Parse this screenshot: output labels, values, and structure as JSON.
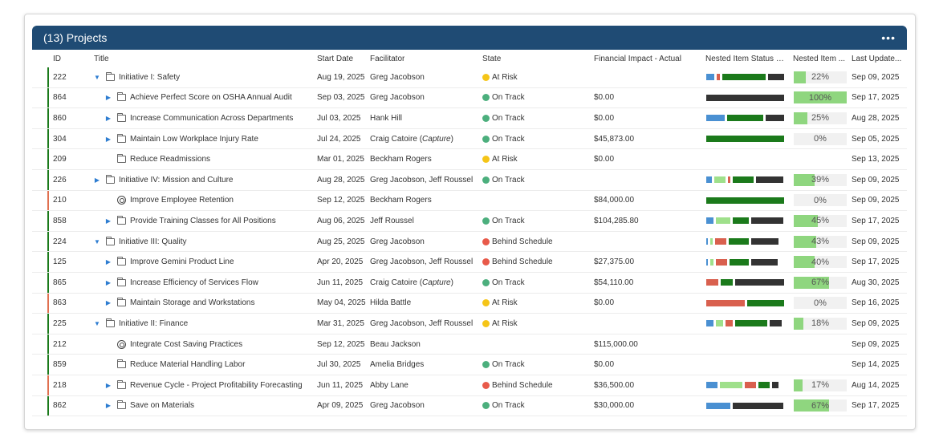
{
  "header": {
    "title": "(13) Projects",
    "more_label": "•••"
  },
  "columns": {
    "id": "ID",
    "title": "Title",
    "start": "Start Date",
    "facilitator": "Facilitator",
    "state": "State",
    "financial": "Financial Impact - Actual",
    "nested_status": "Nested Item Status B...",
    "nested_pct": "Nested Item ...",
    "updated": "Last Update..."
  },
  "colors": {
    "header_bg": "#1f4b74",
    "on_track": "#4caf7d",
    "at_risk": "#f5c518",
    "behind": "#e85a4a",
    "seg_blue": "#4a90d2",
    "seg_lightgreen": "#9fe08b",
    "seg_red": "#d9604e",
    "seg_darkgreen": "#1b7a1b",
    "seg_black": "#333333",
    "pct_fill": "#8fd67f"
  },
  "rows": [
    {
      "id": "222",
      "indent": 0,
      "caret": "down",
      "icon": "folder",
      "title": "Initiative I: Safety",
      "start": "Aug 19, 2025",
      "facilitator": "Greg Jacobson",
      "fac_suffix": "",
      "state": "At Risk",
      "state_color": "#f5c518",
      "financial": "",
      "bar_color": "#1b7a1b",
      "status": [
        [
          "#4a90d2",
          10
        ],
        [
          "#d9604e",
          4
        ],
        [
          "#1b7a1b",
          54
        ],
        [
          "#333333",
          20
        ]
      ],
      "pct": "22%",
      "pct_value": 22,
      "updated": "Sep 09, 2025"
    },
    {
      "id": "864",
      "indent": 1,
      "caret": "right",
      "icon": "folder",
      "title": "Achieve Perfect Score on OSHA Annual Audit",
      "start": "Sep 03, 2025",
      "facilitator": "Greg Jacobson",
      "fac_suffix": "",
      "state": "On Track",
      "state_color": "#4caf7d",
      "financial": "$0.00",
      "bar_color": "#1b7a1b",
      "status": [
        [
          "#333333",
          97
        ]
      ],
      "pct": "100%",
      "pct_value": 100,
      "updated": "Sep 17, 2025"
    },
    {
      "id": "860",
      "indent": 1,
      "caret": "right",
      "icon": "folder",
      "title": "Increase Communication Across Departments",
      "start": "Jul 03, 2025",
      "facilitator": "Hank Hill",
      "fac_suffix": "",
      "state": "On Track",
      "state_color": "#4caf7d",
      "financial": "$0.00",
      "bar_color": "#1b7a1b",
      "status": [
        [
          "#4a90d2",
          23
        ],
        [
          "#1b7a1b",
          45
        ],
        [
          "#333333",
          23
        ]
      ],
      "pct": "25%",
      "pct_value": 25,
      "updated": "Aug 28, 2025"
    },
    {
      "id": "304",
      "indent": 1,
      "caret": "right",
      "icon": "folder",
      "title": "Maintain Low Workplace Injury Rate",
      "start": "Jul 24, 2025",
      "facilitator": "Craig Catoire",
      "fac_suffix": "Capture",
      "state": "On Track",
      "state_color": "#4caf7d",
      "financial": "$45,873.00",
      "bar_color": "#1b7a1b",
      "status": [
        [
          "#1b7a1b",
          97
        ]
      ],
      "pct": "0%",
      "pct_value": 0,
      "updated": "Sep 05, 2025"
    },
    {
      "id": "209",
      "indent": 1,
      "caret": "none",
      "icon": "folder",
      "title": "Reduce Readmissions",
      "start": "Mar 01, 2025",
      "facilitator": "Beckham Rogers",
      "fac_suffix": "",
      "state": "At Risk",
      "state_color": "#f5c518",
      "financial": "$0.00",
      "bar_color": "#1b7a1b",
      "status": [],
      "pct": "",
      "pct_value": null,
      "updated": "Sep 13, 2025"
    },
    {
      "id": "226",
      "indent": 0,
      "caret": "right",
      "icon": "folder",
      "title": "Initiative IV: Mission and Culture",
      "start": "Aug 28, 2025",
      "facilitator": "Greg Jacobson, Jeff Roussel",
      "fac_suffix": "",
      "state": "On Track",
      "state_color": "#4caf7d",
      "financial": "",
      "bar_color": "#1b7a1b",
      "status": [
        [
          "#4a90d2",
          7
        ],
        [
          "#9fe08b",
          14
        ],
        [
          "#d9604e",
          3
        ],
        [
          "#1b7a1b",
          26
        ],
        [
          "#333333",
          34
        ]
      ],
      "pct": "39%",
      "pct_value": 39,
      "updated": "Sep 09, 2025"
    },
    {
      "id": "210",
      "indent": 1,
      "caret": "none",
      "icon": "target",
      "title": "Improve Employee Retention",
      "start": "Sep 12, 2025",
      "facilitator": "Beckham Rogers",
      "fac_suffix": "",
      "state": "",
      "state_color": "",
      "financial": "$84,000.00",
      "bar_color": "#e07050",
      "status": [
        [
          "#1b7a1b",
          97
        ]
      ],
      "pct": "0%",
      "pct_value": 0,
      "updated": "Sep 09, 2025"
    },
    {
      "id": "858",
      "indent": 1,
      "caret": "right",
      "icon": "folder",
      "title": "Provide Training Classes for All Positions",
      "start": "Aug 06, 2025",
      "facilitator": "Jeff Roussel",
      "fac_suffix": "",
      "state": "On Track",
      "state_color": "#4caf7d",
      "financial": "$104,285.80",
      "bar_color": "#1b7a1b",
      "status": [
        [
          "#4a90d2",
          9
        ],
        [
          "#9fe08b",
          18
        ],
        [
          "#1b7a1b",
          20
        ],
        [
          "#333333",
          40
        ]
      ],
      "pct": "45%",
      "pct_value": 45,
      "updated": "Sep 17, 2025"
    },
    {
      "id": "224",
      "indent": 0,
      "caret": "down",
      "icon": "folder",
      "title": "Initiative III: Quality",
      "start": "Aug 25, 2025",
      "facilitator": "Greg Jacobson",
      "fac_suffix": "",
      "state": "Behind Schedule",
      "state_color": "#e85a4a",
      "financial": "",
      "bar_color": "#1b7a1b",
      "status": [
        [
          "#4a90d2",
          2
        ],
        [
          "#9fe08b",
          3
        ],
        [
          "#d9604e",
          14
        ],
        [
          "#1b7a1b",
          25
        ],
        [
          "#333333",
          34
        ]
      ],
      "pct": "43%",
      "pct_value": 43,
      "updated": "Sep 09, 2025"
    },
    {
      "id": "125",
      "indent": 1,
      "caret": "right",
      "icon": "folder",
      "title": "Improve Gemini Product Line",
      "start": "Apr 20, 2025",
      "facilitator": "Greg Jacobson, Jeff Roussel",
      "fac_suffix": "",
      "state": "Behind Schedule",
      "state_color": "#e85a4a",
      "financial": "$27,375.00",
      "bar_color": "#1b7a1b",
      "status": [
        [
          "#4a90d2",
          2
        ],
        [
          "#9fe08b",
          4
        ],
        [
          "#d9604e",
          14
        ],
        [
          "#1b7a1b",
          24
        ],
        [
          "#333333",
          33
        ]
      ],
      "pct": "40%",
      "pct_value": 40,
      "updated": "Sep 17, 2025"
    },
    {
      "id": "865",
      "indent": 1,
      "caret": "right",
      "icon": "folder",
      "title": "Increase Efficiency of Services Flow",
      "start": "Jun 11, 2025",
      "facilitator": "Craig Catoire",
      "fac_suffix": "Capture",
      "state": "On Track",
      "state_color": "#4caf7d",
      "financial": "$54,110.00",
      "bar_color": "#1b7a1b",
      "status": [
        [
          "#d9604e",
          15
        ],
        [
          "#1b7a1b",
          15
        ],
        [
          "#333333",
          61
        ]
      ],
      "pct": "67%",
      "pct_value": 67,
      "updated": "Aug 30, 2025"
    },
    {
      "id": "863",
      "indent": 1,
      "caret": "right",
      "icon": "folder",
      "title": "Maintain Storage and Workstations",
      "start": "May 04, 2025",
      "facilitator": "Hilda Battle",
      "fac_suffix": "",
      "state": "At Risk",
      "state_color": "#f5c518",
      "financial": "$0.00",
      "bar_color": "#e07050",
      "status": [
        [
          "#d9604e",
          48
        ],
        [
          "#1b7a1b",
          46
        ]
      ],
      "pct": "0%",
      "pct_value": 0,
      "updated": "Sep 16, 2025"
    },
    {
      "id": "225",
      "indent": 0,
      "caret": "down",
      "icon": "folder",
      "title": "Initiative II: Finance",
      "start": "Mar 31, 2025",
      "facilitator": "Greg Jacobson, Jeff Roussel",
      "fac_suffix": "",
      "state": "At Risk",
      "state_color": "#f5c518",
      "financial": "",
      "bar_color": "#1b7a1b",
      "status": [
        [
          "#4a90d2",
          9
        ],
        [
          "#9fe08b",
          9
        ],
        [
          "#d9604e",
          9
        ],
        [
          "#1b7a1b",
          40
        ],
        [
          "#333333",
          15
        ]
      ],
      "pct": "18%",
      "pct_value": 18,
      "updated": "Sep 09, 2025"
    },
    {
      "id": "212",
      "indent": 1,
      "caret": "none",
      "icon": "target",
      "title": "Integrate Cost Saving Practices",
      "start": "Sep 12, 2025",
      "facilitator": "Beau Jackson",
      "fac_suffix": "",
      "state": "",
      "state_color": "",
      "financial": "$115,000.00",
      "bar_color": "#1b7a1b",
      "status": [],
      "pct": "",
      "pct_value": null,
      "updated": "Sep 09, 2025"
    },
    {
      "id": "859",
      "indent": 1,
      "caret": "none",
      "icon": "folder",
      "title": "Reduce Material Handling Labor",
      "start": "Jul 30, 2025",
      "facilitator": "Amelia Bridges",
      "fac_suffix": "",
      "state": "On Track",
      "state_color": "#4caf7d",
      "financial": "$0.00",
      "bar_color": "#1b7a1b",
      "status": [],
      "pct": "",
      "pct_value": null,
      "updated": "Sep 14, 2025"
    },
    {
      "id": "218",
      "indent": 1,
      "caret": "right",
      "icon": "folder",
      "title": "Revenue Cycle - Project Profitability Forecasting",
      "start": "Jun 11, 2025",
      "facilitator": "Abby Lane",
      "fac_suffix": "",
      "state": "Behind Schedule",
      "state_color": "#e85a4a",
      "financial": "$36,500.00",
      "bar_color": "#e07050",
      "status": [
        [
          "#4a90d2",
          14
        ],
        [
          "#9fe08b",
          28
        ],
        [
          "#d9604e",
          14
        ],
        [
          "#1b7a1b",
          14
        ],
        [
          "#333333",
          8
        ]
      ],
      "pct": "17%",
      "pct_value": 17,
      "updated": "Aug 14, 2025"
    },
    {
      "id": "862",
      "indent": 1,
      "caret": "right",
      "icon": "folder",
      "title": "Save on Materials",
      "start": "Apr 09, 2025",
      "facilitator": "Greg Jacobson",
      "fac_suffix": "",
      "state": "On Track",
      "state_color": "#4caf7d",
      "financial": "$30,000.00",
      "bar_color": "#1b7a1b",
      "status": [
        [
          "#4a90d2",
          30
        ],
        [
          "#333333",
          63
        ]
      ],
      "pct": "67%",
      "pct_value": 67,
      "updated": "Sep 17, 2025"
    }
  ]
}
